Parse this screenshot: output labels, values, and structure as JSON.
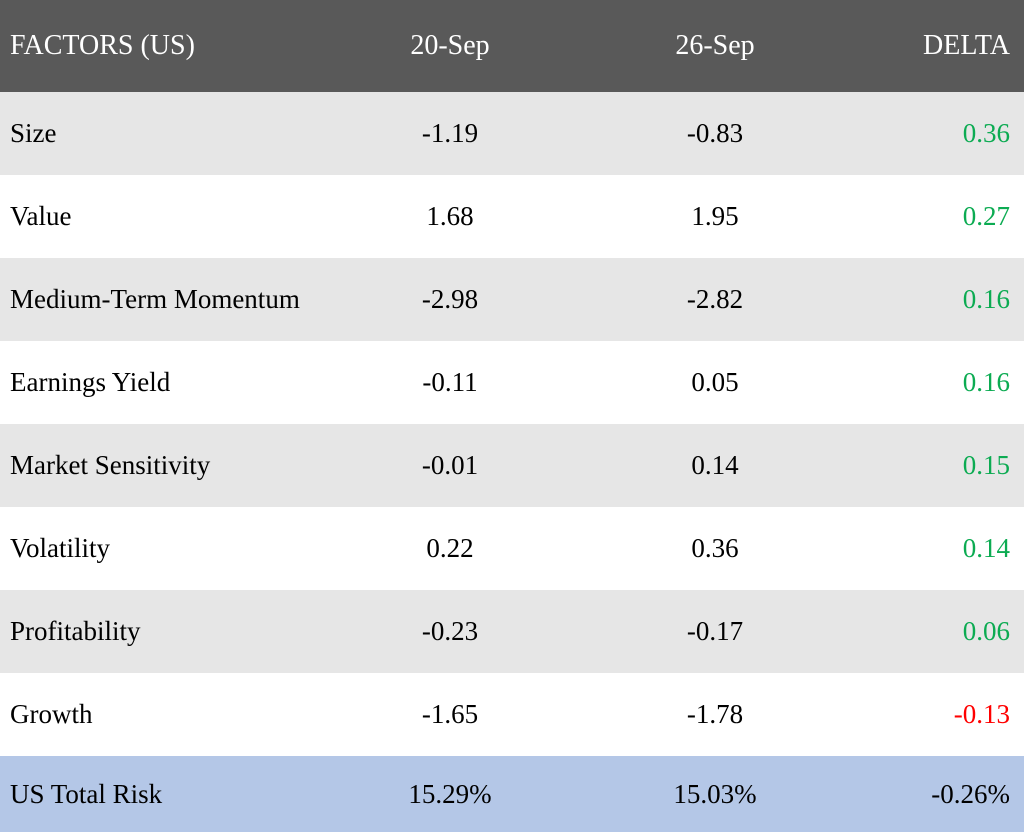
{
  "colors": {
    "header_bg": "#595959",
    "header_text": "#ffffff",
    "row_alt_bg": "#e6e6e6",
    "row_bg": "#ffffff",
    "footer_bg": "#b4c7e7",
    "positive_delta": "#0cab52",
    "negative_delta": "#ff0000",
    "neutral_text": "#000000"
  },
  "table": {
    "header": {
      "factor": "FACTORS (US)",
      "col1": "20-Sep",
      "col2": "26-Sep",
      "delta": "DELTA"
    },
    "rows": [
      {
        "factor": "Size",
        "sep20": "-1.19",
        "sep26": "-0.83",
        "delta": "0.36",
        "delta_color": "positive_delta"
      },
      {
        "factor": "Value",
        "sep20": "1.68",
        "sep26": "1.95",
        "delta": "0.27",
        "delta_color": "positive_delta"
      },
      {
        "factor": "Medium-Term Momentum",
        "sep20": "-2.98",
        "sep26": "-2.82",
        "delta": "0.16",
        "delta_color": "positive_delta"
      },
      {
        "factor": "Earnings Yield",
        "sep20": "-0.11",
        "sep26": "0.05",
        "delta": "0.16",
        "delta_color": "positive_delta"
      },
      {
        "factor": "Market Sensitivity",
        "sep20": "-0.01",
        "sep26": "0.14",
        "delta": "0.15",
        "delta_color": "positive_delta"
      },
      {
        "factor": "Volatility",
        "sep20": "0.22",
        "sep26": "0.36",
        "delta": "0.14",
        "delta_color": "positive_delta"
      },
      {
        "factor": "Profitability",
        "sep20": "-0.23",
        "sep26": "-0.17",
        "delta": "0.06",
        "delta_color": "positive_delta"
      },
      {
        "factor": "Growth",
        "sep20": "-1.65",
        "sep26": "-1.78",
        "delta": "-0.13",
        "delta_color": "negative_delta"
      }
    ],
    "footer": {
      "factor": "US Total Risk",
      "sep20": "15.29%",
      "sep26": "15.03%",
      "delta": "-0.26%",
      "delta_color": "neutral_text"
    }
  },
  "chart_data": {
    "type": "table",
    "title": "FACTORS (US)",
    "columns": [
      "FACTORS (US)",
      "20-Sep",
      "26-Sep",
      "DELTA"
    ],
    "rows": [
      {
        "factor": "Size",
        "sep20": -1.19,
        "sep26": -0.83,
        "delta": 0.36
      },
      {
        "factor": "Value",
        "sep20": 1.68,
        "sep26": 1.95,
        "delta": 0.27
      },
      {
        "factor": "Medium-Term Momentum",
        "sep20": -2.98,
        "sep26": -2.82,
        "delta": 0.16
      },
      {
        "factor": "Earnings Yield",
        "sep20": -0.11,
        "sep26": 0.05,
        "delta": 0.16
      },
      {
        "factor": "Market Sensitivity",
        "sep20": -0.01,
        "sep26": 0.14,
        "delta": 0.15
      },
      {
        "factor": "Volatility",
        "sep20": 0.22,
        "sep26": 0.36,
        "delta": 0.14
      },
      {
        "factor": "Profitability",
        "sep20": -0.23,
        "sep26": -0.17,
        "delta": 0.06
      },
      {
        "factor": "Growth",
        "sep20": -1.65,
        "sep26": -1.78,
        "delta": -0.13
      }
    ],
    "footer": {
      "factor": "US Total Risk",
      "sep20": "15.29%",
      "sep26": "15.03%",
      "delta": "-0.26%"
    },
    "notes": "Delta column rendered green for positive values, red for negative; total-risk row deltas rendered black."
  }
}
